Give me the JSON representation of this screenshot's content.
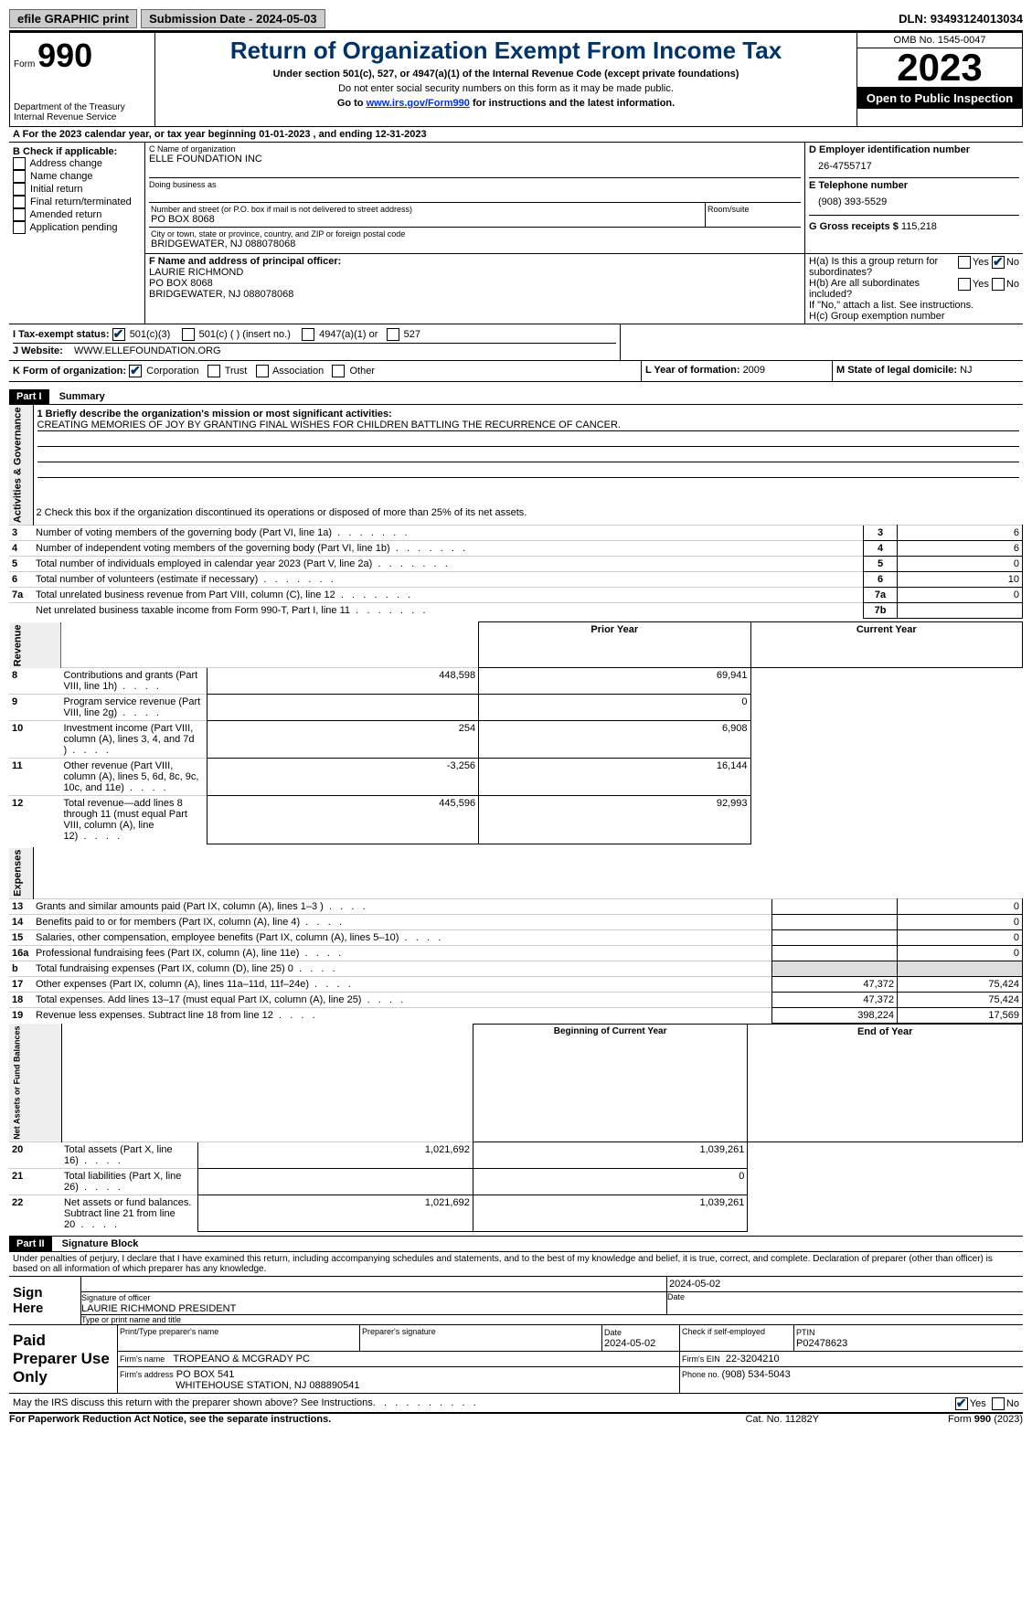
{
  "topbar": {
    "efile": "efile GRAPHIC print",
    "submission": "Submission Date - 2024-05-03",
    "dln": "DLN: 93493124013034"
  },
  "header": {
    "form_label": "Form",
    "form_num": "990",
    "dept": "Department of the Treasury Internal Revenue Service",
    "title": "Return of Organization Exempt From Income Tax",
    "subtitle": "Under section 501(c), 527, or 4947(a)(1) of the Internal Revenue Code (except private foundations)",
    "warn": "Do not enter social security numbers on this form as it may be made public.",
    "goto_pre": "Go to ",
    "goto_link": "www.irs.gov/Form990",
    "goto_post": " for instructions and the latest information.",
    "omb": "OMB No. 1545-0047",
    "year": "2023",
    "inspection": "Open to Public Inspection"
  },
  "lineA": "For the 2023 calendar year, or tax year beginning 01-01-2023   , and ending 12-31-2023",
  "boxB": {
    "title": "B Check if applicable:",
    "opts": [
      "Address change",
      "Name change",
      "Initial return",
      "Final return/terminated",
      "Amended return",
      "Application pending"
    ]
  },
  "boxC": {
    "name_label": "C Name of organization",
    "name": "ELLE FOUNDATION INC",
    "dba_label": "Doing business as",
    "addr_label": "Number and street (or P.O. box if mail is not delivered to street address)",
    "room_label": "Room/suite",
    "addr": "PO BOX 8068",
    "city_label": "City or town, state or province, country, and ZIP or foreign postal code",
    "city": "BRIDGEWATER, NJ  088078068"
  },
  "boxD": {
    "label": "D Employer identification number",
    "val": "26-4755717"
  },
  "boxE": {
    "label": "E Telephone number",
    "val": "(908) 393-5529"
  },
  "boxG": {
    "label": "G Gross receipts $ ",
    "val": "115,218"
  },
  "boxF": {
    "label": "F  Name and address of principal officer:",
    "line1": "LAURIE RICHMOND",
    "line2": "PO BOX 8068",
    "line3": "BRIDGEWATER, NJ  088078068"
  },
  "boxH": {
    "a_label": "H(a)  Is this a group return for subordinates?",
    "b_label": "H(b)  Are all subordinates included?",
    "b_note": "If \"No,\" attach a list. See instructions.",
    "c_label": "H(c)  Group exemption number",
    "yes": "Yes",
    "no": "No"
  },
  "lineI": {
    "label": "I   Tax-exempt status:",
    "o1": "501(c)(3)",
    "o2": "501(c) (  ) (insert no.)",
    "o3": "4947(a)(1) or",
    "o4": "527"
  },
  "lineJ": {
    "label": "J   Website:",
    "val": "WWW.ELLEFOUNDATION.ORG"
  },
  "lineK": {
    "label": "K Form of organization:",
    "o1": "Corporation",
    "o2": "Trust",
    "o3": "Association",
    "o4": "Other"
  },
  "lineL": {
    "label": "L Year of formation: ",
    "val": "2009"
  },
  "lineM": {
    "label": "M State of legal domicile: ",
    "val": "NJ"
  },
  "part1": {
    "header": "Part I",
    "title": "Summary"
  },
  "summary": {
    "l1_label": "1   Briefly describe the organization's mission or most significant activities:",
    "l1_text": "CREATING MEMORIES OF JOY BY GRANTING FINAL WISHES FOR CHILDREN BATTLING THE RECURRENCE OF CANCER.",
    "l2": "2    Check this box      if the organization discontinued its operations or disposed of more than 25% of its net assets.",
    "rows_ag": [
      {
        "n": "3",
        "t": "Number of voting members of the governing body (Part VI, line 1a)",
        "b": "3",
        "v": "6"
      },
      {
        "n": "4",
        "t": "Number of independent voting members of the governing body (Part VI, line 1b)",
        "b": "4",
        "v": "6"
      },
      {
        "n": "5",
        "t": "Total number of individuals employed in calendar year 2023 (Part V, line 2a)",
        "b": "5",
        "v": "0"
      },
      {
        "n": "6",
        "t": "Total number of volunteers (estimate if necessary)",
        "b": "6",
        "v": "10"
      },
      {
        "n": "7a",
        "t": "Total unrelated business revenue from Part VIII, column (C), line 12",
        "b": "7a",
        "v": "0"
      },
      {
        "n": "",
        "t": "Net unrelated business taxable income from Form 990-T, Part I, line 11",
        "b": "7b",
        "v": ""
      }
    ],
    "col_prior": "Prior Year",
    "col_current": "Current Year",
    "rows_rev": [
      {
        "n": "8",
        "t": "Contributions and grants (Part VIII, line 1h)",
        "p": "448,598",
        "c": "69,941"
      },
      {
        "n": "9",
        "t": "Program service revenue (Part VIII, line 2g)",
        "p": "",
        "c": "0"
      },
      {
        "n": "10",
        "t": "Investment income (Part VIII, column (A), lines 3, 4, and 7d )",
        "p": "254",
        "c": "6,908"
      },
      {
        "n": "11",
        "t": "Other revenue (Part VIII, column (A), lines 5, 6d, 8c, 9c, 10c, and 11e)",
        "p": "-3,256",
        "c": "16,144"
      },
      {
        "n": "12",
        "t": "Total revenue—add lines 8 through 11 (must equal Part VIII, column (A), line 12)",
        "p": "445,596",
        "c": "92,993"
      }
    ],
    "rows_exp": [
      {
        "n": "13",
        "t": "Grants and similar amounts paid (Part IX, column (A), lines 1–3 )",
        "p": "",
        "c": "0"
      },
      {
        "n": "14",
        "t": "Benefits paid to or for members (Part IX, column (A), line 4)",
        "p": "",
        "c": "0"
      },
      {
        "n": "15",
        "t": "Salaries, other compensation, employee benefits (Part IX, column (A), lines 5–10)",
        "p": "",
        "c": "0"
      },
      {
        "n": "16a",
        "t": "Professional fundraising fees (Part IX, column (A), line 11e)",
        "p": "",
        "c": "0"
      },
      {
        "n": "b",
        "t": "Total fundraising expenses (Part IX, column (D), line 25) 0",
        "p": "shade",
        "c": "shade"
      },
      {
        "n": "17",
        "t": "Other expenses (Part IX, column (A), lines 11a–11d, 11f–24e)",
        "p": "47,372",
        "c": "75,424"
      },
      {
        "n": "18",
        "t": "Total expenses. Add lines 13–17 (must equal Part IX, column (A), line 25)",
        "p": "47,372",
        "c": "75,424"
      },
      {
        "n": "19",
        "t": "Revenue less expenses. Subtract line 18 from line 12",
        "p": "398,224",
        "c": "17,569"
      }
    ],
    "col_begin": "Beginning of Current Year",
    "col_end": "End of Year",
    "rows_na": [
      {
        "n": "20",
        "t": "Total assets (Part X, line 16)",
        "p": "1,021,692",
        "c": "1,039,261"
      },
      {
        "n": "21",
        "t": "Total liabilities (Part X, line 26)",
        "p": "",
        "c": "0"
      },
      {
        "n": "22",
        "t": "Net assets or fund balances. Subtract line 21 from line 20",
        "p": "1,021,692",
        "c": "1,039,261"
      }
    ],
    "vtext_ag": "Activities & Governance",
    "vtext_rev": "Revenue",
    "vtext_exp": "Expenses",
    "vtext_na": "Net Assets or Fund Balances"
  },
  "part2": {
    "header": "Part II",
    "title": "Signature Block"
  },
  "sig": {
    "declaration": "Under penalties of perjury, I declare that I have examined this return, including accompanying schedules and statements, and to the best of my knowledge and belief, it is true, correct, and complete. Declaration of preparer (other than officer) is based on all information of which preparer has any knowledge.",
    "sign_here": "Sign Here",
    "date1": "2024-05-02",
    "sig_label": "Signature of officer",
    "officer": "LAURIE RICHMOND PRESIDENT",
    "type_label": "Type or print name and title",
    "date_label": "Date",
    "paid": "Paid Preparer Use Only",
    "prep_name_label": "Print/Type preparer's name",
    "prep_sig_label": "Preparer's signature",
    "date2": "2024-05-02",
    "check_label": "Check       if self-employed",
    "ptin_label": "PTIN",
    "ptin": "P02478623",
    "firm_name_label": "Firm's name",
    "firm_name": "TROPEANO & MCGRADY PC",
    "firm_ein_label": "Firm's EIN",
    "firm_ein": "22-3204210",
    "firm_addr_label": "Firm's address",
    "firm_addr1": "PO BOX 541",
    "firm_addr2": "WHITEHOUSE STATION, NJ  088890541",
    "phone_label": "Phone no. ",
    "phone": "(908) 534-5043",
    "may_irs": "May the IRS discuss this return with the preparer shown above? See Instructions.",
    "yes": "Yes",
    "no": "No"
  },
  "footer": {
    "paperwork": "For Paperwork Reduction Act Notice, see the separate instructions.",
    "cat": "Cat. No. 11282Y",
    "form": "Form 990 (2023)"
  }
}
